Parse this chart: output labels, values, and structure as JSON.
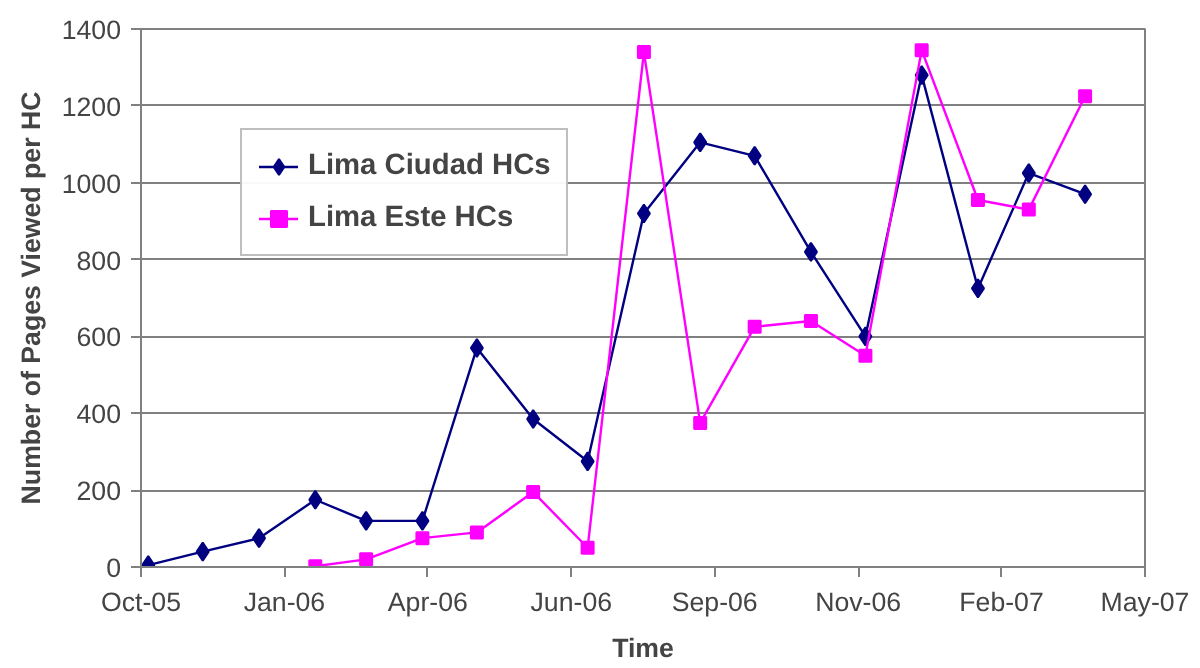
{
  "chart_data": {
    "type": "line",
    "xlabel": "Time",
    "ylabel": "Number of Pages Viewed per HC",
    "x": [
      "2005-11-01",
      "2005-12-01",
      "2006-01-01",
      "2006-02-01",
      "2006-03-01",
      "2006-04-01",
      "2006-05-01",
      "2006-06-01",
      "2006-07-01",
      "2006-08-01",
      "2006-09-01",
      "2006-10-01",
      "2006-11-01",
      "2006-12-01",
      "2007-01-01",
      "2007-02-01",
      "2007-03-01",
      "2007-04-01"
    ],
    "series": [
      {
        "name": "Lima Ciudad HCs",
        "color": "#000080",
        "marker": "diamond",
        "values": [
          5,
          40,
          75,
          175,
          120,
          120,
          570,
          385,
          275,
          920,
          1105,
          1070,
          820,
          600,
          1280,
          725,
          1025,
          970
        ]
      },
      {
        "name": "Lima Este HCs",
        "color": "#ff00ff",
        "marker": "square",
        "values": [
          null,
          null,
          null,
          2,
          20,
          75,
          90,
          195,
          50,
          1340,
          375,
          625,
          640,
          550,
          1345,
          955,
          930,
          1225
        ]
      }
    ],
    "xlim": [
      "2005-10-28",
      "2007-05-04"
    ],
    "xticks": [
      {
        "value": "2005-10-28",
        "label": "Oct-05"
      },
      {
        "value": "2006-01-15",
        "label": "Jan-06"
      },
      {
        "value": "2006-04-04",
        "label": "Apr-06"
      },
      {
        "value": "2006-06-22",
        "label": "Jun-06"
      },
      {
        "value": "2006-09-09",
        "label": "Sep-06"
      },
      {
        "value": "2006-11-27",
        "label": "Nov-06"
      },
      {
        "value": "2007-02-14",
        "label": "Feb-07"
      },
      {
        "value": "2007-05-04",
        "label": "May-07"
      }
    ],
    "ylim": [
      0,
      1400
    ],
    "yticks": [
      0,
      200,
      400,
      600,
      800,
      1000,
      1200,
      1400
    ],
    "grid": "y",
    "legend": "top left",
    "line_style": "solid"
  }
}
